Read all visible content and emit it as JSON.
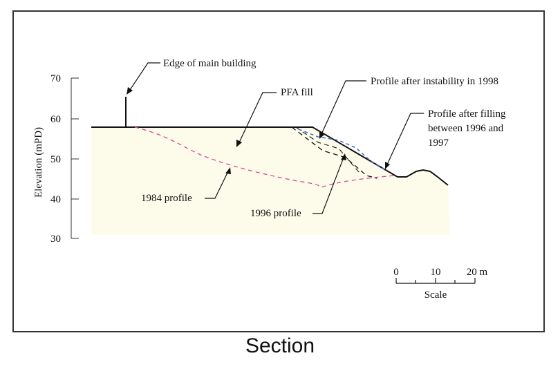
{
  "caption": "Section",
  "axis": {
    "label": "Elevation (mPD)",
    "ticks": [
      "70",
      "60",
      "50",
      "40",
      "30"
    ]
  },
  "annotations": {
    "edge_building": "Edge of main building",
    "pfa_fill": "PFA fill",
    "profile_1998": "Profile after instability in 1998",
    "filling_line1": "Profile after filling",
    "filling_line2": "between 1996 and",
    "filling_line3": "1997",
    "profile_1984": "1984 profile",
    "profile_1996": "1996 profile"
  },
  "scale": {
    "ticks": [
      "0",
      "10",
      "20 m"
    ],
    "label": "Scale"
  },
  "colors": {
    "fill_area": "#fdfbea",
    "profile_1984": "#e0429a",
    "profile_1998": "#3f6fd0",
    "line": "#111111"
  }
}
